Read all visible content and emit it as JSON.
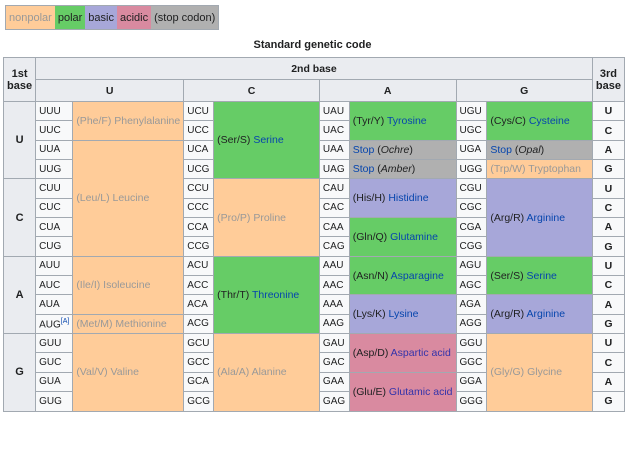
{
  "legend": [
    {
      "label": "nonpolar",
      "class": "c-nonpolar"
    },
    {
      "label": "polar",
      "class": "c-polar"
    },
    {
      "label": "basic",
      "class": "c-basic"
    },
    {
      "label": "acidic",
      "class": "c-acidic"
    },
    {
      "label": "(stop codon)",
      "class": "c-stop"
    }
  ],
  "caption": "Standard genetic code",
  "headers": {
    "first": [
      "1st",
      "base"
    ],
    "second": "2nd base",
    "third": [
      "3rd",
      "base"
    ],
    "columns": [
      "U",
      "C",
      "A",
      "G"
    ]
  },
  "first_bases": [
    "U",
    "C",
    "A",
    "G"
  ],
  "third_bases": [
    "U",
    "C",
    "A",
    "G",
    "U",
    "C",
    "A",
    "G",
    "U",
    "C",
    "A",
    "G",
    "U",
    "C",
    "A",
    "G"
  ],
  "codons": [
    [
      "UUU",
      "UCU",
      "UAU",
      "UGU"
    ],
    [
      "UUC",
      "UCC",
      "UAC",
      "UGC"
    ],
    [
      "UUA",
      "UCA",
      "UAA",
      "UGA"
    ],
    [
      "UUG",
      "UCG",
      "UAG",
      "UGG"
    ],
    [
      "CUU",
      "CCU",
      "CAU",
      "CGU"
    ],
    [
      "CUC",
      "CCC",
      "CAC",
      "CGC"
    ],
    [
      "CUA",
      "CCA",
      "CAA",
      "CGA"
    ],
    [
      "CUG",
      "CCG",
      "CAG",
      "CGG"
    ],
    [
      "AUU",
      "ACU",
      "AAU",
      "AGU"
    ],
    [
      "AUC",
      "ACC",
      "AAC",
      "AGC"
    ],
    [
      "AUA",
      "ACA",
      "AAA",
      "AGA"
    ],
    [
      "AUG",
      "ACG",
      "AAG",
      "AGG"
    ],
    [
      "GUU",
      "GCU",
      "GAU",
      "GGU"
    ],
    [
      "GUC",
      "GCC",
      "GAC",
      "GGC"
    ],
    [
      "GUA",
      "GCA",
      "GAA",
      "GGA"
    ],
    [
      "GUG",
      "GCG",
      "GAG",
      "GGG"
    ]
  ],
  "aug_footnote": "[A]",
  "amino_acids": [
    {
      "col": 0,
      "row": 0,
      "span": 2,
      "abbr": "(Phe/F)",
      "name": "Phenylalanine",
      "class": "c-nonpolar"
    },
    {
      "col": 0,
      "row": 2,
      "span": 6,
      "abbr": "(Leu/L)",
      "name": "Leucine",
      "class": "c-nonpolar"
    },
    {
      "col": 0,
      "row": 8,
      "span": 3,
      "abbr": "(Ile/I)",
      "name": "Isoleucine",
      "class": "c-nonpolar"
    },
    {
      "col": 0,
      "row": 11,
      "span": 1,
      "abbr": "(Met/M)",
      "name": "Methionine",
      "class": "c-nonpolar"
    },
    {
      "col": 0,
      "row": 12,
      "span": 4,
      "abbr": "(Val/V)",
      "name": "Valine",
      "class": "c-nonpolar"
    },
    {
      "col": 1,
      "row": 0,
      "span": 4,
      "abbr": "(Ser/S)",
      "name": "Serine",
      "class": "c-polar"
    },
    {
      "col": 1,
      "row": 4,
      "span": 4,
      "abbr": "(Pro/P)",
      "name": "Proline",
      "class": "c-nonpolar"
    },
    {
      "col": 1,
      "row": 8,
      "span": 4,
      "abbr": "(Thr/T)",
      "name": "Threonine",
      "class": "c-polar"
    },
    {
      "col": 1,
      "row": 12,
      "span": 4,
      "abbr": "(Ala/A)",
      "name": "Alanine",
      "class": "c-nonpolar"
    },
    {
      "col": 2,
      "row": 0,
      "span": 2,
      "abbr": "(Tyr/Y)",
      "name": "Tyrosine",
      "class": "c-polar"
    },
    {
      "col": 2,
      "row": 2,
      "span": 1,
      "abbr": "Stop",
      "name": "(Ochre)",
      "class": "c-stop",
      "stop": true
    },
    {
      "col": 2,
      "row": 3,
      "span": 1,
      "abbr": "Stop",
      "name": "(Amber)",
      "class": "c-stop",
      "stop": true
    },
    {
      "col": 2,
      "row": 4,
      "span": 2,
      "abbr": "(His/H)",
      "name": "Histidine",
      "class": "c-basic"
    },
    {
      "col": 2,
      "row": 6,
      "span": 2,
      "abbr": "(Gln/Q)",
      "name": "Glutamine",
      "class": "c-polar"
    },
    {
      "col": 2,
      "row": 8,
      "span": 2,
      "abbr": "(Asn/N)",
      "name": "Asparagine",
      "class": "c-polar"
    },
    {
      "col": 2,
      "row": 10,
      "span": 2,
      "abbr": "(Lys/K)",
      "name": "Lysine",
      "class": "c-basic"
    },
    {
      "col": 2,
      "row": 12,
      "span": 2,
      "abbr": "(Asp/D)",
      "name": "Aspartic acid",
      "class": "c-acidic"
    },
    {
      "col": 2,
      "row": 14,
      "span": 2,
      "abbr": "(Glu/E)",
      "name": "Glutamic acid",
      "class": "c-acidic"
    },
    {
      "col": 3,
      "row": 0,
      "span": 2,
      "abbr": "(Cys/C)",
      "name": "Cysteine",
      "class": "c-polar"
    },
    {
      "col": 3,
      "row": 2,
      "span": 1,
      "abbr": "Stop",
      "name": "(Opal)",
      "class": "c-stop",
      "stop": true
    },
    {
      "col": 3,
      "row": 3,
      "span": 1,
      "abbr": "(Trp/W)",
      "name": "Tryptophan",
      "class": "c-nonpolar"
    },
    {
      "col": 3,
      "row": 4,
      "span": 4,
      "abbr": "(Arg/R)",
      "name": "Arginine",
      "class": "c-basic"
    },
    {
      "col": 3,
      "row": 8,
      "span": 2,
      "abbr": "(Ser/S)",
      "name": "Serine",
      "class": "c-polar"
    },
    {
      "col": 3,
      "row": 10,
      "span": 2,
      "abbr": "(Arg/R)",
      "name": "Arginine",
      "class": "c-basic"
    },
    {
      "col": 3,
      "row": 12,
      "span": 4,
      "abbr": "(Gly/G)",
      "name": "Glycine",
      "class": "c-nonpolar"
    }
  ]
}
